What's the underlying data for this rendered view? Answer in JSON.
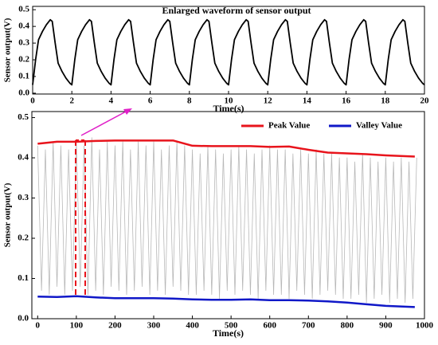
{
  "chart_data": [
    {
      "type": "line",
      "title": "Enlarged waveform of sensor output",
      "xlabel": "Time(s)",
      "ylabel": "Sensor output(V)",
      "xlim": [
        0,
        20
      ],
      "ylim": [
        -0.005,
        0.52
      ],
      "xticks": [
        0,
        2,
        4,
        6,
        8,
        10,
        12,
        14,
        16,
        18,
        20
      ],
      "yticks": [
        {
          "value": 0,
          "label": "0.0"
        },
        0.1,
        0.2,
        0.3,
        0.4,
        0.5
      ],
      "x": [
        0,
        0.15,
        0.3,
        0.5,
        0.7,
        0.9,
        1,
        1.15,
        1.3,
        1.5,
        1.7,
        1.9,
        2,
        2.15,
        2.3,
        2.5,
        2.7,
        2.9,
        3,
        3.15,
        3.3,
        3.5,
        3.7,
        3.9,
        4,
        4.15,
        4.3,
        4.5,
        4.7,
        4.9,
        5,
        5.15,
        5.3,
        5.5,
        5.7,
        5.9,
        6,
        6.15,
        6.3,
        6.5,
        6.7,
        6.9,
        7,
        7.15,
        7.3,
        7.5,
        7.7,
        7.9,
        8,
        8.15,
        8.3,
        8.5,
        8.7,
        8.9,
        9,
        9.15,
        9.3,
        9.5,
        9.7,
        9.9,
        10,
        10.15,
        10.3,
        10.5,
        10.7,
        10.9,
        11,
        11.15,
        11.3,
        11.5,
        11.7,
        11.9,
        12,
        12.15,
        12.3,
        12.5,
        12.7,
        12.9,
        13,
        13.15,
        13.3,
        13.5,
        13.7,
        13.9,
        14,
        14.15,
        14.3,
        14.5,
        14.7,
        14.9,
        15,
        15.15,
        15.3,
        15.5,
        15.7,
        15.9,
        16,
        16.15,
        16.3,
        16.5,
        16.7,
        16.9,
        17,
        17.15,
        17.3,
        17.5,
        17.7,
        17.9,
        18,
        18.15,
        18.3,
        18.5,
        18.7,
        18.9,
        19,
        19.15,
        19.3,
        19.5,
        19.7,
        19.9,
        20
      ],
      "series": [
        {
          "color": "#000000",
          "values": [
            0.05,
            0.2,
            0.32,
            0.37,
            0.41,
            0.44,
            0.43,
            0.3,
            0.18,
            0.13,
            0.09,
            0.06,
            0.05,
            0.2,
            0.32,
            0.37,
            0.41,
            0.44,
            0.43,
            0.3,
            0.18,
            0.13,
            0.09,
            0.06,
            0.05,
            0.2,
            0.32,
            0.37,
            0.41,
            0.44,
            0.43,
            0.3,
            0.18,
            0.13,
            0.09,
            0.06,
            0.05,
            0.2,
            0.32,
            0.37,
            0.41,
            0.44,
            0.43,
            0.3,
            0.18,
            0.13,
            0.09,
            0.06,
            0.05,
            0.2,
            0.32,
            0.37,
            0.41,
            0.44,
            0.43,
            0.3,
            0.18,
            0.13,
            0.09,
            0.06,
            0.05,
            0.2,
            0.32,
            0.37,
            0.41,
            0.44,
            0.43,
            0.3,
            0.18,
            0.13,
            0.09,
            0.06,
            0.05,
            0.2,
            0.32,
            0.37,
            0.41,
            0.44,
            0.43,
            0.3,
            0.18,
            0.13,
            0.09,
            0.06,
            0.05,
            0.2,
            0.32,
            0.37,
            0.41,
            0.44,
            0.43,
            0.3,
            0.18,
            0.13,
            0.09,
            0.06,
            0.05,
            0.2,
            0.32,
            0.37,
            0.41,
            0.44,
            0.43,
            0.3,
            0.18,
            0.13,
            0.09,
            0.06,
            0.05,
            0.2,
            0.32,
            0.37,
            0.41,
            0.44,
            0.43,
            0.3,
            0.18,
            0.13,
            0.09,
            0.06,
            0.05
          ]
        }
      ]
    },
    {
      "type": "line",
      "xlabel": "Time(s)",
      "ylabel": "Sensor output(V)",
      "xlim": [
        -15,
        1000
      ],
      "ylim": [
        0,
        0.515
      ],
      "xticks": [
        0,
        100,
        200,
        300,
        400,
        500,
        600,
        700,
        800,
        900,
        1000
      ],
      "yticks": [
        {
          "value": 0,
          "label": "0.0"
        },
        0.1,
        0.2,
        0.3,
        0.4,
        0.5
      ],
      "legend": "upper right",
      "x": [
        0,
        50,
        100,
        150,
        200,
        250,
        300,
        350,
        400,
        450,
        500,
        550,
        600,
        650,
        700,
        750,
        800,
        850,
        900,
        950,
        975
      ],
      "series": [
        {
          "color": "#b8b8b8",
          "x": [
            0,
            10,
            20,
            30,
            40,
            50,
            60,
            70,
            80,
            90,
            100,
            110,
            120,
            130,
            140,
            150,
            160,
            170,
            180,
            190,
            200,
            210,
            220,
            230,
            240,
            250,
            260,
            270,
            280,
            290,
            300,
            310,
            320,
            330,
            340,
            350,
            360,
            370,
            380,
            390,
            400,
            410,
            420,
            430,
            440,
            450,
            460,
            470,
            480,
            490,
            500,
            510,
            520,
            530,
            540,
            550,
            560,
            570,
            580,
            590,
            600,
            610,
            620,
            630,
            640,
            650,
            660,
            670,
            680,
            690,
            700,
            710,
            720,
            730,
            740,
            750,
            760,
            770,
            780,
            790,
            800,
            810,
            820,
            830,
            840,
            850,
            860,
            870,
            880,
            890,
            900,
            910,
            920,
            930,
            940,
            950,
            960,
            970,
            980
          ],
          "values": [
            0.43,
            0.07,
            0.42,
            0.06,
            0.44,
            0.08,
            0.43,
            0.06,
            0.42,
            0.07,
            0.44,
            0.08,
            0.43,
            0.06,
            0.45,
            0.07,
            0.42,
            0.06,
            0.44,
            0.08,
            0.43,
            0.07,
            0.44,
            0.06,
            0.42,
            0.07,
            0.44,
            0.08,
            0.43,
            0.06,
            0.44,
            0.07,
            0.42,
            0.06,
            0.43,
            0.08,
            0.44,
            0.07,
            0.43,
            0.06,
            0.42,
            0.06,
            0.41,
            0.07,
            0.43,
            0.06,
            0.42,
            0.05,
            0.41,
            0.07,
            0.42,
            0.06,
            0.43,
            0.07,
            0.42,
            0.06,
            0.41,
            0.05,
            0.42,
            0.07,
            0.43,
            0.06,
            0.42,
            0.06,
            0.42,
            0.05,
            0.41,
            0.07,
            0.42,
            0.06,
            0.41,
            0.05,
            0.42,
            0.06,
            0.41,
            0.07,
            0.41,
            0.06,
            0.4,
            0.05,
            0.4,
            0.05,
            0.39,
            0.06,
            0.41,
            0.04,
            0.4,
            0.05,
            0.39,
            0.06,
            0.4,
            0.04,
            0.39,
            0.05,
            0.4,
            0.04,
            0.39,
            0.05,
            0.4
          ]
        },
        {
          "name": "Peak Value",
          "color": "#e8141c",
          "values": [
            0.435,
            0.44,
            0.44,
            0.442,
            0.443,
            0.443,
            0.443,
            0.443,
            0.43,
            0.429,
            0.429,
            0.429,
            0.427,
            0.428,
            0.42,
            0.413,
            0.411,
            0.409,
            0.406,
            0.404,
            0.403
          ]
        },
        {
          "name": "Valley Value",
          "color": "#1018c8",
          "values": [
            0.055,
            0.054,
            0.056,
            0.053,
            0.051,
            0.051,
            0.051,
            0.05,
            0.048,
            0.047,
            0.047,
            0.048,
            0.046,
            0.046,
            0.045,
            0.043,
            0.04,
            0.036,
            0.032,
            0.03,
            0.029
          ]
        }
      ]
    }
  ]
}
